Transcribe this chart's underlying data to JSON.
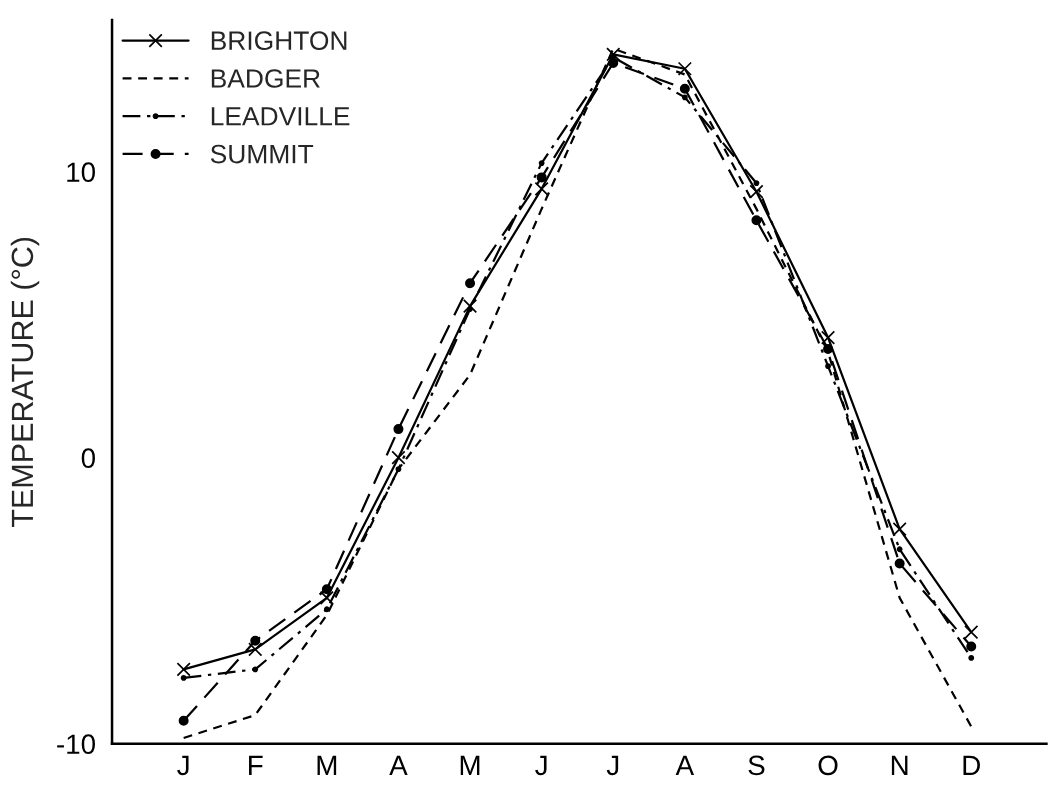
{
  "chart_data": {
    "type": "line",
    "ylabel": "TEMPERATURE (°C)",
    "categories": [
      "J",
      "F",
      "M",
      "A",
      "M",
      "J",
      "J",
      "A",
      "S",
      "O",
      "N",
      "D"
    ],
    "series": [
      {
        "name": "BRIGHTON",
        "color": "#000000",
        "marker": "cross",
        "line_style": "solid",
        "values": [
          -7.4,
          -6.7,
          -4.9,
          0.0,
          5.3,
          9.4,
          14.1,
          13.6,
          9.3,
          4.2,
          -2.5,
          -6.1
        ]
      },
      {
        "name": "BADGER",
        "color": "#000000",
        "line_style": "dashed",
        "values": [
          -9.8,
          -9.0,
          -5.5,
          -0.4,
          2.9,
          8.7,
          14.3,
          13.4,
          8.7,
          3.7,
          -4.9,
          -9.4
        ]
      },
      {
        "name": "LEADVILLE",
        "color": "#000000",
        "marker": "dot",
        "line_style": "dashdot",
        "values": [
          -7.7,
          -7.4,
          -5.3,
          -0.4,
          5.2,
          10.3,
          14.0,
          12.6,
          9.6,
          3.2,
          -3.2,
          -7.0
        ]
      },
      {
        "name": "SUMMIT",
        "color": "#000000",
        "marker": "circle",
        "line_style": "longdash",
        "values": [
          -9.2,
          -6.4,
          -4.6,
          1.0,
          6.1,
          9.8,
          13.8,
          12.9,
          8.3,
          3.8,
          -3.7,
          -6.6
        ]
      }
    ],
    "ylim": [
      -10,
      15.3
    ],
    "yticks": [
      -10,
      0,
      10
    ],
    "grid": false,
    "legend": "top left"
  }
}
